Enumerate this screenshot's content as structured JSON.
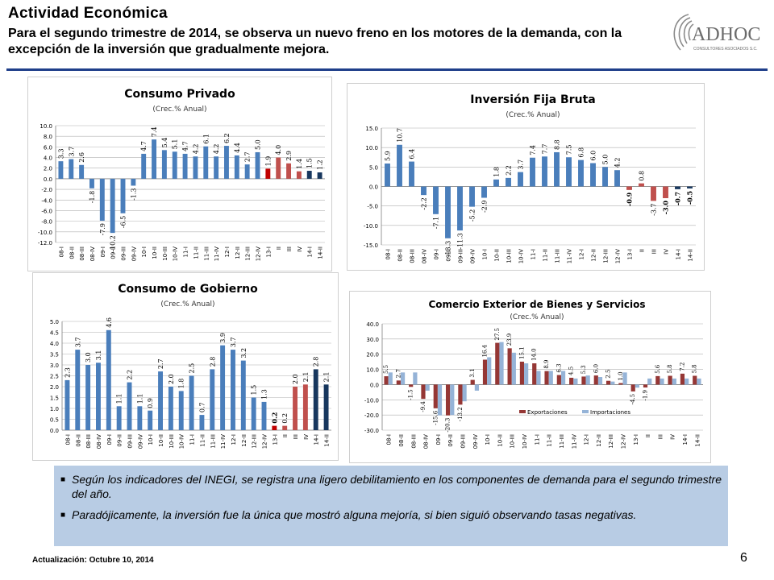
{
  "header": {
    "title": "Actividad Económica",
    "subtitle": "Para el segundo trimestre de 2014, se observa un nuevo freno en los motores de la demanda, con la excepción de la inversión que gradualmente mejora."
  },
  "logo": {
    "name": "ADHOC",
    "tagline": "CONSULTORES ASOCIADOS S.C."
  },
  "bullets": [
    "Según los indicadores del INEGI, se registra una ligero debilitamiento en los componentes de demanda para el segundo trimestre del año.",
    "Paradójicamente, la inversión fue la única que mostró alguna mejoría, si bien siguió observando tasas negativas."
  ],
  "footer": {
    "update": "Actualización: Octubre 10, 2014",
    "page": "6"
  },
  "colors": {
    "blue": "#4a7ebb",
    "red": "#c0504d",
    "dark_red": "#953735",
    "light_blue": "#95b3d7",
    "navy": "#17375e",
    "rule": "#1f3f8a"
  },
  "chart_data": [
    {
      "id": "consumo-privado",
      "type": "bar",
      "title": "Consumo Privado",
      "subtitle": "(Crec.% Anual)",
      "categories": [
        "08-I",
        "08-II",
        "08-III",
        "08-IV",
        "09-I",
        "09-II",
        "09-III",
        "09-IV",
        "10-I",
        "10-II",
        "10-III",
        "10-IV",
        "11-I",
        "11-II",
        "11-III",
        "11-IV",
        "12-I",
        "12-II",
        "12-III",
        "12-IV",
        "13-I",
        "II",
        "III",
        "IV",
        "14-I",
        "14-II"
      ],
      "values": [
        3.3,
        3.7,
        2.6,
        -1.8,
        -7.9,
        -10.2,
        -6.5,
        -1.3,
        4.7,
        7.4,
        5.4,
        5.1,
        4.7,
        4.2,
        6.1,
        4.2,
        6.2,
        4.4,
        2.7,
        5.0,
        1.9,
        4.0,
        2.9,
        1.4,
        1.5,
        1.2
      ],
      "colors": [
        "#4a7ebb",
        "#4a7ebb",
        "#4a7ebb",
        "#4a7ebb",
        "#4a7ebb",
        "#4a7ebb",
        "#4a7ebb",
        "#4a7ebb",
        "#4a7ebb",
        "#4a7ebb",
        "#4a7ebb",
        "#4a7ebb",
        "#4a7ebb",
        "#4a7ebb",
        "#4a7ebb",
        "#4a7ebb",
        "#4a7ebb",
        "#4a7ebb",
        "#4a7ebb",
        "#4a7ebb",
        "#c00000",
        "#c0504d",
        "#c0504d",
        "#c0504d",
        "#17375e",
        "#17375e"
      ],
      "ylim": [
        -12,
        10
      ],
      "yticks": [
        10.0,
        8.0,
        6.0,
        4.0,
        2.0,
        0.0,
        -2.0,
        -4.0,
        -6.0,
        -8.0,
        -10.0,
        -12.0
      ],
      "grid": true
    },
    {
      "id": "inversion-fija-bruta",
      "type": "bar",
      "title": "Inversión Fija Bruta",
      "subtitle": "(Crec.% Anual)",
      "categories": [
        "08-I",
        "08-II",
        "08-III",
        "08-IV",
        "09-I",
        "09-II",
        "09-III",
        "09-IV",
        "10-I",
        "10-II",
        "10-III",
        "10-IV",
        "11-I",
        "11-II",
        "11-III",
        "11-IV",
        "12-I",
        "12-II",
        "12-III",
        "12-IV",
        "13-I",
        "II",
        "III",
        "IV",
        "14-I",
        "14-II"
      ],
      "values": [
        5.9,
        10.7,
        6.4,
        -2.2,
        -7.1,
        -13.3,
        -11.3,
        -5.2,
        -2.9,
        1.8,
        2.2,
        3.7,
        7.4,
        7.7,
        8.8,
        7.5,
        6.8,
        6.0,
        5.0,
        4.2,
        -0.9,
        0.8,
        -3.7,
        -3.0,
        -0.7,
        -0.5
      ],
      "colors": [
        "#4a7ebb",
        "#4a7ebb",
        "#4a7ebb",
        "#4a7ebb",
        "#4a7ebb",
        "#4a7ebb",
        "#4a7ebb",
        "#4a7ebb",
        "#4a7ebb",
        "#4a7ebb",
        "#4a7ebb",
        "#4a7ebb",
        "#4a7ebb",
        "#4a7ebb",
        "#4a7ebb",
        "#4a7ebb",
        "#4a7ebb",
        "#4a7ebb",
        "#4a7ebb",
        "#4a7ebb",
        "#c0504d",
        "#c0504d",
        "#c0504d",
        "#c0504d",
        "#17375e",
        "#17375e"
      ],
      "label_bold": [
        false,
        false,
        false,
        false,
        false,
        false,
        false,
        false,
        false,
        false,
        false,
        false,
        false,
        false,
        false,
        false,
        false,
        false,
        false,
        false,
        true,
        false,
        false,
        true,
        true,
        true
      ],
      "ylim": [
        -15,
        15
      ],
      "yticks": [
        15.0,
        10.0,
        5.0,
        0.0,
        -5.0,
        -10.0,
        -15.0
      ],
      "grid": true
    },
    {
      "id": "consumo-de-gobierno",
      "type": "bar",
      "title": "Consumo de Gobierno",
      "subtitle": "(Crec.% Anual)",
      "categories": [
        "08-I",
        "08-II",
        "08-III",
        "08-IV",
        "09-I",
        "09-II",
        "09-III",
        "09-IV",
        "10-I",
        "10-II",
        "10-III",
        "10-IV",
        "11-I",
        "11-II",
        "11-III",
        "11-IV",
        "12-I",
        "12-II",
        "12-III",
        "12-IV",
        "13-I",
        "II",
        "III",
        "IV",
        "14-I",
        "14-II"
      ],
      "values": [
        2.3,
        3.7,
        3.0,
        3.1,
        4.6,
        1.1,
        2.2,
        1.1,
        0.9,
        2.7,
        2.0,
        1.8,
        2.5,
        0.7,
        2.8,
        3.9,
        3.7,
        3.2,
        1.5,
        1.3,
        0.2,
        0.2,
        2.0,
        2.1,
        2.8,
        2.1
      ],
      "colors": [
        "#4a7ebb",
        "#4a7ebb",
        "#4a7ebb",
        "#4a7ebb",
        "#4a7ebb",
        "#4a7ebb",
        "#4a7ebb",
        "#4a7ebb",
        "#4a7ebb",
        "#4a7ebb",
        "#4a7ebb",
        "#4a7ebb",
        "#4a7ebb",
        "#4a7ebb",
        "#4a7ebb",
        "#4a7ebb",
        "#4a7ebb",
        "#4a7ebb",
        "#4a7ebb",
        "#4a7ebb",
        "#c00000",
        "#c0504d",
        "#c0504d",
        "#c0504d",
        "#17375e",
        "#17375e"
      ],
      "label_bold": [
        false,
        false,
        false,
        false,
        false,
        false,
        false,
        false,
        false,
        false,
        false,
        false,
        false,
        false,
        false,
        false,
        false,
        false,
        false,
        false,
        true,
        false,
        false,
        false,
        false,
        false
      ],
      "ylim": [
        0,
        5
      ],
      "yticks": [
        5.0,
        4.5,
        4.0,
        3.5,
        3.0,
        2.5,
        2.0,
        1.5,
        1.0,
        0.5,
        0.0
      ],
      "grid": true
    },
    {
      "id": "comercio-exterior",
      "type": "bar",
      "title": "Comercio Exterior de Bienes y Servicios",
      "subtitle": "(Crec.% Anual)",
      "categories": [
        "08-I",
        "08-II",
        "08-III",
        "08-IV",
        "09-I",
        "09-II",
        "09-III",
        "09-IV",
        "10-I",
        "10-II",
        "10-III",
        "10-IV",
        "11-I",
        "11-II",
        "11-III",
        "11-IV",
        "12-I",
        "12-II",
        "12-III",
        "12-IV",
        "13-I",
        "II",
        "III",
        "IV",
        "14-I",
        "14-II"
      ],
      "series": [
        {
          "name": "Exportaciones",
          "values": [
            5.5,
            2.7,
            -1.5,
            -9.4,
            -15.6,
            -20.3,
            -13.2,
            3.1,
            16.4,
            27.5,
            23.9,
            15.1,
            14.0,
            8.9,
            6.3,
            4.5,
            5.3,
            6.0,
            2.5,
            1.0,
            -4.5,
            -1.9,
            5.6,
            5.8,
            7.2,
            5.8
          ],
          "color": "#953735"
        },
        {
          "name": "Importaciones",
          "values": [
            8.0,
            8.0,
            8.0,
            -4.0,
            -20.3,
            -20.0,
            -11.0,
            -4.0,
            18.0,
            28.0,
            21.0,
            14.0,
            9.0,
            9.0,
            9.0,
            4.0,
            6.0,
            5.0,
            2.0,
            8.0,
            -2.0,
            4.0,
            4.0,
            4.0,
            4.0,
            4.0
          ],
          "color": "#95b3d7"
        }
      ],
      "ylim": [
        -30,
        40
      ],
      "yticks": [
        40.0,
        30.0,
        20.0,
        10.0,
        0.0,
        -10.0,
        -20.0,
        -30.0
      ],
      "legend": "bottom-center",
      "grid": true
    }
  ]
}
